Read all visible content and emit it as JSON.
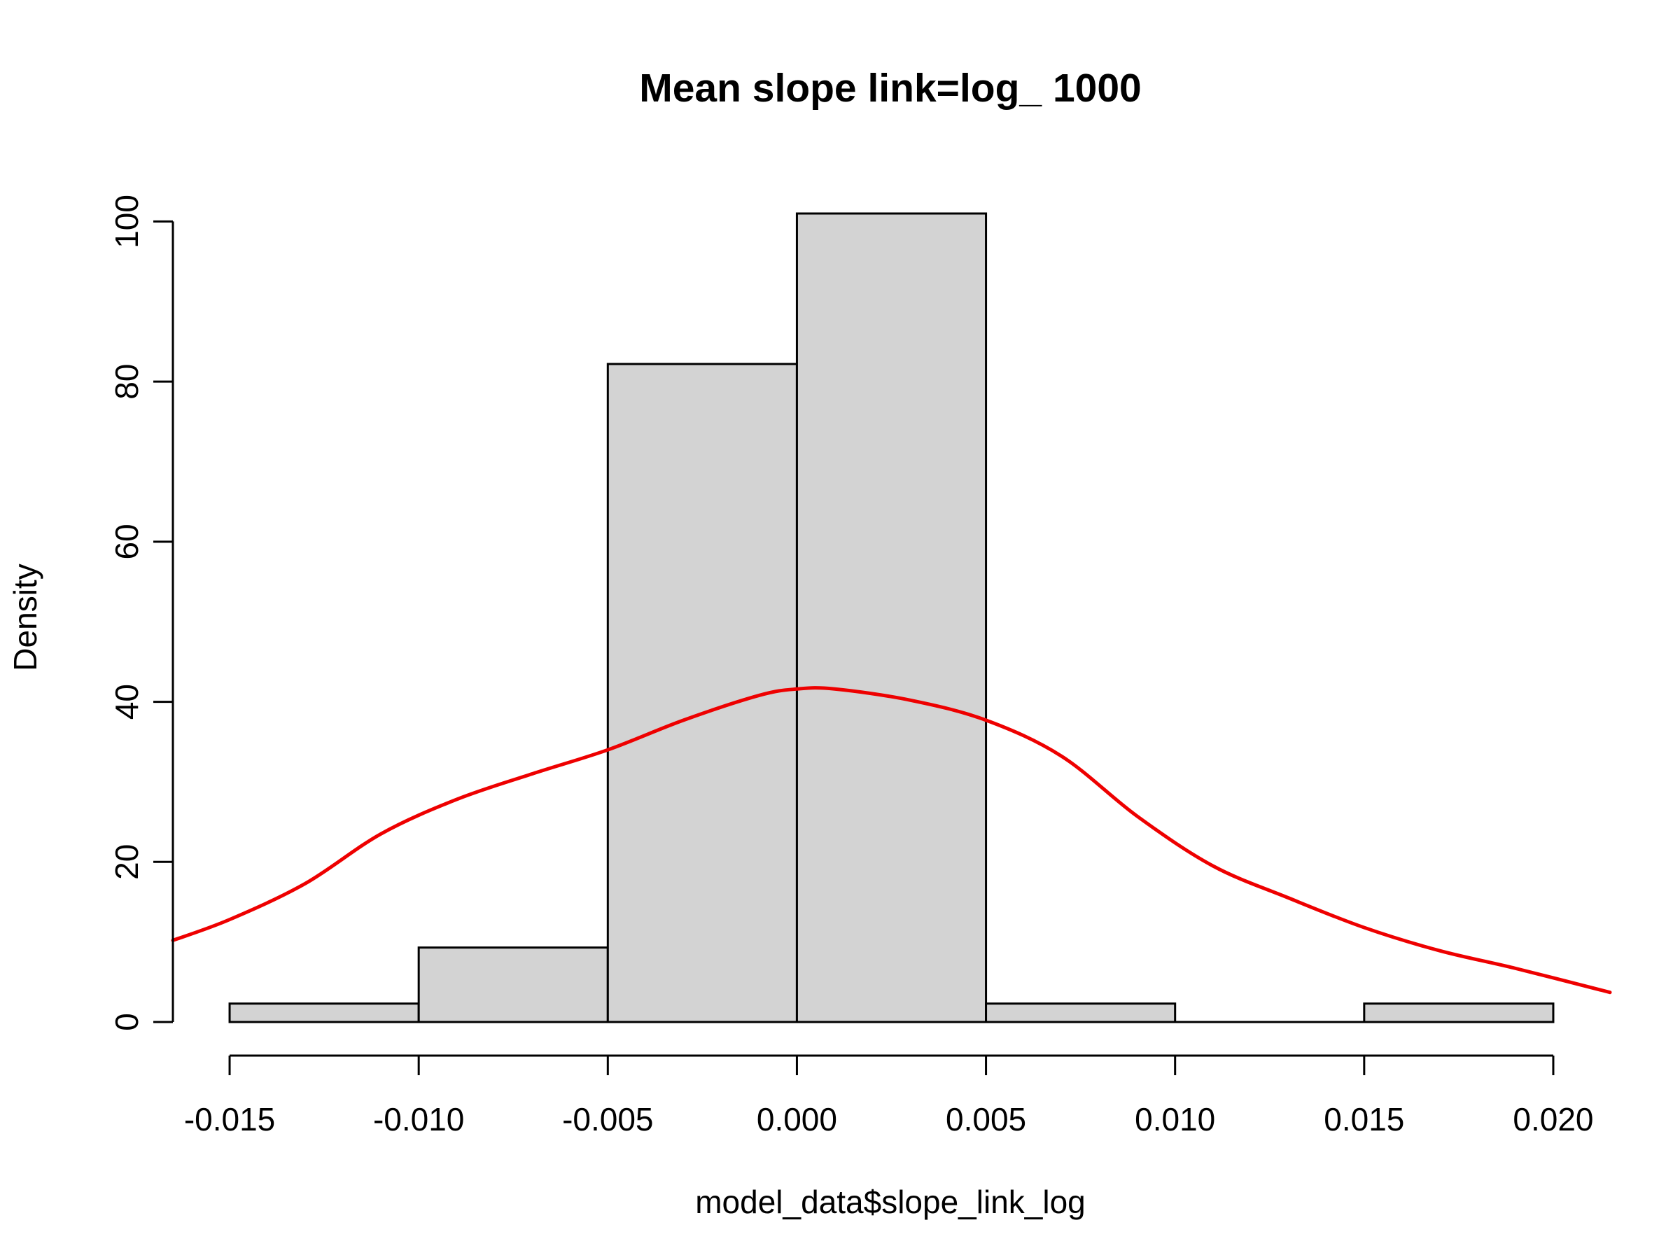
{
  "chart_data": {
    "type": "bar",
    "subtype": "histogram-with-density",
    "title": "Mean slope link=log_ 1000",
    "xlabel": "model_data$slope_link_log",
    "ylabel": "Density",
    "xlim": [
      -0.0165,
      0.0215
    ],
    "ylim": [
      0,
      101
    ],
    "x_ticks": [
      -0.015,
      -0.01,
      -0.005,
      0.0,
      0.005,
      0.01,
      0.015,
      0.02
    ],
    "x_tick_labels": [
      "-0.015",
      "-0.010",
      "-0.005",
      "0.000",
      "0.005",
      "0.010",
      "0.015",
      "0.020"
    ],
    "y_ticks": [
      0,
      20,
      40,
      60,
      80,
      100
    ],
    "y_tick_labels": [
      "0",
      "20",
      "40",
      "60",
      "80",
      "100"
    ],
    "bins": [
      {
        "start": -0.015,
        "end": -0.01,
        "density": 2.3
      },
      {
        "start": -0.01,
        "end": -0.005,
        "density": 9.3
      },
      {
        "start": -0.005,
        "end": 0.0,
        "density": 82.2
      },
      {
        "start": 0.0,
        "end": 0.005,
        "density": 101.0
      },
      {
        "start": 0.005,
        "end": 0.01,
        "density": 2.3
      },
      {
        "start": 0.01,
        "end": 0.015,
        "density": 0.0
      },
      {
        "start": 0.015,
        "end": 0.02,
        "density": 2.3
      }
    ],
    "density_curve": {
      "color": "#ee0000",
      "x": [
        -0.0165,
        -0.015,
        -0.013,
        -0.011,
        -0.009,
        -0.007,
        -0.005,
        -0.003,
        -0.001,
        0.0,
        0.001,
        0.003,
        0.005,
        0.007,
        0.009,
        0.011,
        0.013,
        0.015,
        0.017,
        0.019,
        0.0215
      ],
      "y": [
        10.2,
        12.8,
        17.3,
        23.5,
        27.8,
        31.0,
        34.0,
        37.7,
        40.8,
        41.6,
        41.6,
        40.2,
        37.7,
        33.2,
        25.7,
        19.5,
        15.5,
        11.8,
        8.9,
        6.7,
        3.7
      ]
    },
    "grid": false,
    "legend": "none",
    "bar_fill": "#d3d3d3"
  }
}
